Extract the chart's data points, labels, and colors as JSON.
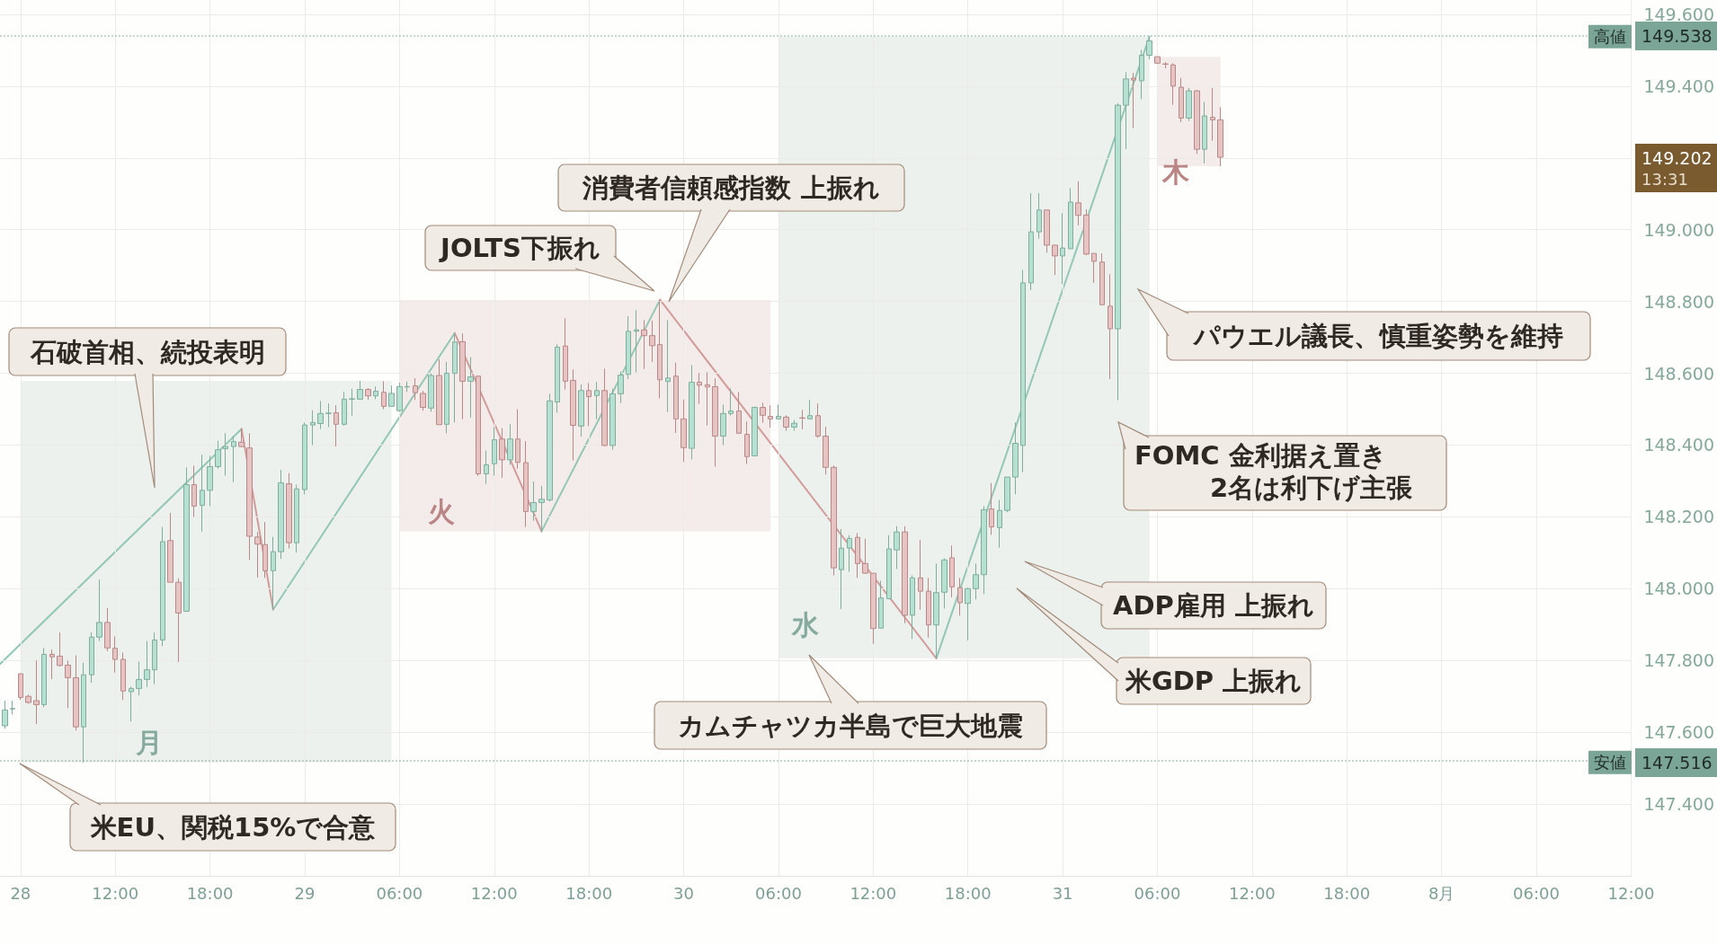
{
  "chart_data": {
    "type": "candlestick",
    "x": [
      "--07-28T05:00",
      "--07-28T05:30",
      "--07-28T06:00",
      "--07-28T06:30",
      "--07-28T07:00",
      "--07-28T07:30",
      "--07-28T08:00",
      "--07-28T08:30",
      "--07-28T09:00",
      "--07-28T09:30",
      "--07-28T10:00",
      "--07-28T10:30",
      "--07-28T11:00",
      "--07-28T11:30",
      "--07-28T12:00",
      "--07-28T12:30",
      "--07-28T13:00",
      "--07-28T13:30",
      "--07-28T14:00",
      "--07-28T14:30",
      "--07-28T15:00",
      "--07-28T15:30",
      "--07-28T16:00",
      "--07-28T16:30",
      "--07-28T17:00",
      "--07-28T17:30",
      "--07-28T18:00",
      "--07-28T18:30",
      "--07-28T19:00",
      "--07-28T19:30",
      "--07-28T20:00",
      "--07-28T20:30",
      "--07-28T21:00",
      "--07-28T21:30",
      "--07-28T22:00",
      "--07-28T22:30",
      "--07-28T23:00",
      "--07-28T23:30",
      "--07-29T00:00",
      "--07-29T00:30",
      "--07-29T01:00",
      "--07-29T01:30",
      "--07-29T02:00",
      "--07-29T02:30",
      "--07-29T03:00",
      "--07-29T03:30",
      "--07-29T04:00",
      "--07-29T04:30",
      "--07-29T05:00",
      "--07-29T05:30",
      "--07-29T06:00",
      "--07-29T06:30",
      "--07-29T07:00",
      "--07-29T07:30",
      "--07-29T08:00",
      "--07-29T08:30",
      "--07-29T09:00",
      "--07-29T09:30",
      "--07-29T10:00",
      "--07-29T10:30",
      "--07-29T11:00",
      "--07-29T11:30",
      "--07-29T12:00",
      "--07-29T12:30",
      "--07-29T13:00",
      "--07-29T13:30",
      "--07-29T14:00",
      "--07-29T14:30",
      "--07-29T15:00",
      "--07-29T15:30",
      "--07-29T16:00",
      "--07-29T16:30",
      "--07-29T17:00",
      "--07-29T17:30",
      "--07-29T18:00",
      "--07-29T18:30",
      "--07-29T19:00",
      "--07-29T19:30",
      "--07-29T20:00",
      "--07-29T20:30",
      "--07-29T21:00",
      "--07-29T21:30",
      "--07-29T22:00",
      "--07-29T22:30",
      "--07-29T23:00",
      "--07-29T23:30",
      "--07-30T00:00",
      "--07-30T00:30",
      "--07-30T01:00",
      "--07-30T01:30",
      "--07-30T02:00",
      "--07-30T02:30",
      "--07-30T03:00",
      "--07-30T03:30",
      "--07-30T04:00",
      "--07-30T04:30",
      "--07-30T05:00",
      "--07-30T05:30",
      "--07-30T06:00",
      "--07-30T06:30",
      "--07-30T07:00",
      "--07-30T07:30",
      "--07-30T08:00",
      "--07-30T08:30",
      "--07-30T09:00",
      "--07-30T09:30",
      "--07-30T10:00",
      "--07-30T10:30",
      "--07-30T11:00",
      "--07-30T11:30",
      "--07-30T12:00",
      "--07-30T12:30",
      "--07-30T13:00",
      "--07-30T13:30",
      "--07-30T14:00",
      "--07-30T14:30",
      "--07-30T15:00",
      "--07-30T15:30",
      "--07-30T16:00",
      "--07-30T16:30",
      "--07-30T17:00",
      "--07-30T17:30",
      "--07-30T18:00",
      "--07-30T18:30",
      "--07-30T19:00",
      "--07-30T19:30",
      "--07-30T20:00",
      "--07-30T20:30",
      "--07-30T21:00",
      "--07-30T21:30",
      "--07-30T22:00",
      "--07-30T22:30",
      "--07-30T23:00",
      "--07-30T23:30",
      "--07-31T00:00",
      "--07-31T00:30",
      "--07-31T01:00",
      "--07-31T01:30",
      "--07-31T02:00",
      "--07-31T02:30",
      "--07-31T03:00",
      "--07-31T03:30",
      "--07-31T04:00",
      "--07-31T04:30",
      "--07-31T05:00",
      "--07-31T05:30",
      "--07-31T06:00",
      "--07-31T06:30",
      "--07-31T07:00",
      "--07-31T07:30",
      "--07-31T08:00",
      "--07-31T08:30",
      "--07-31T09:00",
      "--07-31T09:30",
      "--07-31T10:00"
    ],
    "ohlc": [
      [
        147.618,
        147.688,
        147.61,
        147.662
      ],
      [
        147.665,
        147.688,
        147.65,
        147.666
      ],
      [
        147.763,
        147.763,
        147.69,
        147.697
      ],
      [
        147.7,
        147.705,
        147.68,
        147.683
      ],
      [
        147.688,
        147.8,
        147.623,
        147.677
      ],
      [
        147.677,
        147.835,
        147.67,
        147.817
      ],
      [
        147.817,
        147.83,
        147.748,
        147.81
      ],
      [
        147.812,
        147.878,
        147.783,
        147.786
      ],
      [
        147.787,
        147.8,
        147.667,
        147.752
      ],
      [
        147.752,
        147.814,
        147.605,
        147.615
      ],
      [
        147.615,
        147.794,
        147.516,
        147.76
      ],
      [
        147.76,
        147.878,
        147.738,
        147.865
      ],
      [
        147.865,
        148.025,
        147.854,
        147.906
      ],
      [
        147.906,
        147.946,
        147.826,
        147.835
      ],
      [
        147.834,
        147.867,
        147.766,
        147.803
      ],
      [
        147.803,
        147.822,
        147.69,
        147.715
      ],
      [
        147.713,
        147.727,
        147.63,
        147.722
      ],
      [
        147.722,
        147.797,
        147.703,
        147.747
      ],
      [
        147.747,
        147.854,
        147.726,
        147.774
      ],
      [
        147.774,
        147.878,
        147.734,
        147.857
      ],
      [
        147.857,
        148.172,
        147.84,
        148.131
      ],
      [
        148.134,
        148.211,
        148.018,
        148.018
      ],
      [
        148.018,
        148.029,
        147.796,
        147.932
      ],
      [
        147.937,
        148.338,
        147.937,
        148.29
      ],
      [
        148.29,
        148.343,
        148.2,
        148.23
      ],
      [
        148.232,
        148.373,
        148.159,
        148.274
      ],
      [
        148.274,
        148.37,
        148.23,
        148.34
      ],
      [
        148.34,
        148.412,
        148.334,
        148.387
      ],
      [
        148.39,
        148.433,
        148.315,
        148.396
      ],
      [
        148.396,
        148.426,
        148.297,
        148.41
      ],
      [
        148.408,
        148.445,
        148.394,
        148.396
      ],
      [
        148.392,
        148.433,
        148.08,
        148.146
      ],
      [
        148.144,
        148.158,
        148.031,
        148.124
      ],
      [
        148.123,
        148.186,
        148.03,
        148.05
      ],
      [
        148.05,
        148.144,
        147.942,
        148.103
      ],
      [
        148.103,
        148.331,
        148.083,
        148.295
      ],
      [
        148.292,
        148.322,
        148.112,
        148.128
      ],
      [
        148.128,
        148.29,
        148.1,
        148.278
      ],
      [
        148.276,
        148.463,
        148.263,
        148.456
      ],
      [
        148.456,
        148.497,
        148.4,
        148.463
      ],
      [
        148.46,
        148.523,
        148.445,
        148.488
      ],
      [
        148.488,
        148.516,
        148.45,
        148.489
      ],
      [
        148.49,
        148.511,
        148.396,
        148.458
      ],
      [
        148.458,
        148.548,
        148.454,
        148.528
      ],
      [
        148.528,
        148.557,
        148.482,
        148.529
      ],
      [
        148.528,
        148.579,
        148.526,
        148.555
      ],
      [
        148.555,
        148.559,
        148.526,
        148.537
      ],
      [
        148.537,
        148.563,
        148.528,
        148.55
      ],
      [
        148.547,
        148.578,
        148.5,
        148.508
      ],
      [
        148.508,
        148.566,
        148.508,
        148.544
      ],
      [
        148.496,
        148.574,
        148.493,
        148.563
      ],
      [
        148.562,
        148.577,
        148.548,
        148.563
      ],
      [
        148.565,
        148.586,
        148.526,
        148.546
      ],
      [
        148.544,
        148.551,
        148.496,
        148.505
      ],
      [
        148.503,
        148.6,
        148.493,
        148.594
      ],
      [
        148.594,
        148.639,
        148.457,
        148.457
      ],
      [
        148.458,
        148.632,
        148.433,
        148.6
      ],
      [
        148.6,
        148.712,
        148.463,
        148.687
      ],
      [
        148.688,
        148.711,
        148.472,
        148.578
      ],
      [
        148.578,
        148.645,
        148.477,
        148.59
      ],
      [
        148.592,
        148.594,
        148.314,
        148.32
      ],
      [
        148.32,
        148.385,
        148.292,
        148.345
      ],
      [
        148.348,
        148.451,
        148.315,
        148.415
      ],
      [
        148.417,
        148.447,
        148.309,
        148.359
      ],
      [
        148.359,
        148.458,
        148.345,
        148.417
      ],
      [
        148.417,
        148.5,
        148.334,
        148.352
      ],
      [
        148.351,
        148.411,
        148.172,
        148.215
      ],
      [
        148.215,
        148.299,
        148.189,
        148.24
      ],
      [
        148.24,
        148.286,
        148.16,
        148.249
      ],
      [
        148.247,
        148.543,
        148.243,
        148.523
      ],
      [
        148.52,
        148.681,
        148.49,
        148.673
      ],
      [
        148.676,
        148.753,
        148.555,
        148.578
      ],
      [
        148.58,
        148.611,
        148.357,
        148.455
      ],
      [
        148.453,
        148.569,
        148.424,
        148.552
      ],
      [
        148.552,
        148.573,
        148.453,
        148.535
      ],
      [
        148.538,
        148.576,
        148.472,
        148.552
      ],
      [
        148.552,
        148.613,
        148.397,
        148.399
      ],
      [
        148.399,
        148.557,
        148.387,
        148.543
      ],
      [
        148.543,
        148.605,
        148.517,
        148.595
      ],
      [
        148.597,
        148.759,
        148.584,
        148.717
      ],
      [
        148.717,
        148.776,
        148.603,
        148.721
      ],
      [
        148.721,
        148.748,
        148.612,
        148.705
      ],
      [
        148.705,
        148.747,
        148.632,
        148.677
      ],
      [
        148.68,
        148.804,
        148.53,
        148.582
      ],
      [
        148.577,
        148.748,
        148.492,
        148.587
      ],
      [
        148.592,
        148.63,
        148.434,
        148.473
      ],
      [
        148.473,
        148.527,
        148.353,
        148.393
      ],
      [
        148.391,
        148.623,
        148.36,
        148.575
      ],
      [
        148.575,
        148.601,
        148.515,
        148.567
      ],
      [
        148.568,
        148.603,
        148.455,
        148.562
      ],
      [
        148.563,
        148.586,
        148.34,
        148.425
      ],
      [
        148.425,
        148.513,
        148.4,
        148.488
      ],
      [
        148.488,
        148.558,
        148.482,
        148.495
      ],
      [
        148.495,
        148.548,
        148.432,
        148.433
      ],
      [
        148.43,
        148.466,
        148.347,
        148.368
      ],
      [
        148.37,
        148.507,
        148.37,
        148.505
      ],
      [
        148.505,
        148.518,
        148.462,
        148.483
      ],
      [
        148.48,
        148.511,
        148.449,
        148.473
      ],
      [
        148.473,
        148.513,
        148.473,
        148.48
      ],
      [
        148.478,
        148.483,
        148.44,
        148.45
      ],
      [
        148.45,
        148.47,
        148.44,
        148.461
      ],
      [
        148.476,
        148.498,
        148.444,
        148.475
      ],
      [
        148.473,
        148.526,
        148.473,
        148.482
      ],
      [
        148.482,
        148.516,
        148.42,
        148.425
      ],
      [
        148.425,
        148.451,
        148.318,
        148.338
      ],
      [
        148.338,
        148.343,
        148.037,
        148.058
      ],
      [
        148.053,
        148.166,
        147.943,
        148.113
      ],
      [
        148.113,
        148.149,
        148.047,
        148.14
      ],
      [
        148.143,
        148.155,
        148.03,
        148.07
      ],
      [
        148.07,
        148.139,
        148.043,
        148.043
      ],
      [
        148.043,
        148.043,
        147.846,
        147.889
      ],
      [
        147.89,
        148.022,
        147.89,
        147.974
      ],
      [
        147.972,
        148.149,
        147.972,
        148.111
      ],
      [
        148.108,
        148.174,
        148.055,
        148.158
      ],
      [
        148.158,
        148.174,
        147.904,
        147.926
      ],
      [
        147.926,
        148.037,
        147.86,
        148.03
      ],
      [
        148.03,
        148.136,
        147.941,
        147.993
      ],
      [
        147.993,
        148.03,
        147.864,
        147.899
      ],
      [
        147.899,
        148.07,
        147.806,
        147.989
      ],
      [
        147.99,
        148.085,
        147.945,
        148.08
      ],
      [
        148.086,
        148.12,
        147.976,
        148.005
      ],
      [
        148.003,
        148.03,
        147.925,
        147.961
      ],
      [
        147.959,
        148.003,
        147.856,
        148
      ],
      [
        148,
        148.07,
        147.97,
        148.039
      ],
      [
        148.039,
        148.23,
        147.985,
        148.22
      ],
      [
        148.222,
        148.294,
        148.15,
        148.172
      ],
      [
        148.17,
        148.247,
        148.114,
        148.218
      ],
      [
        148.218,
        148.311,
        148.213,
        148.311
      ],
      [
        148.311,
        148.463,
        148.263,
        148.405
      ],
      [
        148.399,
        148.888,
        148.325,
        148.852
      ],
      [
        148.852,
        149.102,
        148.832,
        148.994
      ],
      [
        148.994,
        149.102,
        148.975,
        149.055
      ],
      [
        149.055,
        149.055,
        148.936,
        148.957
      ],
      [
        148.957,
        148.957,
        148.874,
        148.927
      ],
      [
        148.927,
        149.046,
        148.849,
        148.949
      ],
      [
        148.947,
        149.116,
        148.947,
        149.077
      ],
      [
        149.075,
        149.135,
        149.012,
        149.04
      ],
      [
        149.041,
        149.057,
        148.929,
        148.932
      ],
      [
        148.934,
        148.934,
        148.852,
        148.912
      ],
      [
        148.91,
        148.934,
        148.791,
        148.791
      ],
      [
        148.787,
        148.876,
        148.584,
        148.724
      ],
      [
        148.724,
        149.352,
        148.525,
        149.347
      ],
      [
        149.347,
        149.439,
        149.225,
        149.42
      ],
      [
        149.422,
        149.437,
        149.283,
        149.417
      ],
      [
        149.415,
        149.501,
        149.364,
        149.486
      ],
      [
        149.486,
        149.538,
        149.475,
        149.526
      ],
      [
        149.482,
        149.482,
        149.462,
        149.464
      ],
      [
        149.462,
        149.467,
        149.45,
        149.461
      ],
      [
        149.459,
        149.464,
        149.348,
        149.4
      ],
      [
        149.397,
        149.423,
        149.3,
        149.311
      ],
      [
        149.311,
        149.395,
        149.303,
        149.387
      ],
      [
        149.387,
        149.389,
        149.211,
        149.224
      ],
      [
        149.224,
        149.356,
        149.185,
        149.317
      ],
      [
        149.313,
        149.395,
        149.248,
        149.306
      ],
      [
        149.306,
        149.341,
        149.177,
        149.202
      ]
    ],
    "series": [
      {
        "type": "line",
        "color": "#93c7b5",
        "x": [
          "--07-28T04:42",
          "--07-28T20:00",
          "--07-28T21:00",
          "--07-28T22:00",
          "--07-29T09:30",
          "--07-29T12:00",
          "--07-29T15:00",
          "--07-29T22:30",
          "--07-30T07:00",
          "--07-30T16:00",
          "--07-31T05:30"
        ],
        "values": [
          147.79,
          148.445,
          null,
          147.942,
          148.712,
          null,
          148.16,
          148.805,
          null,
          147.806,
          149.538
        ]
      },
      {
        "type": "line",
        "color": "#d39c9c",
        "x": [
          "--07-28T20:00",
          "--07-28T22:00",
          "--07-29T04:00",
          "--07-29T09:30",
          "--07-29T15:00",
          "--07-29T18:00",
          "--07-29T22:30",
          "--07-30T16:00"
        ],
        "values": [
          148.445,
          147.942,
          null,
          148.712,
          148.16,
          null,
          148.805,
          147.806
        ]
      }
    ],
    "xlim": [
      "--07-28T04:42",
      "--08-01T12:00"
    ],
    "xticks": [
      {
        "value": "--07-28T06:00",
        "label": "28"
      },
      {
        "value": "--07-28T12:00",
        "label": "12:00"
      },
      {
        "value": "--07-28T18:00",
        "label": "18:00"
      },
      {
        "value": "--07-29T00:00",
        "label": "29"
      },
      {
        "value": "--07-29T06:00",
        "label": "06:00"
      },
      {
        "value": "--07-29T12:00",
        "label": "12:00"
      },
      {
        "value": "--07-29T18:00",
        "label": "18:00"
      },
      {
        "value": "--07-30T00:00",
        "label": "30"
      },
      {
        "value": "--07-30T06:00",
        "label": "06:00"
      },
      {
        "value": "--07-30T12:00",
        "label": "12:00"
      },
      {
        "value": "--07-30T18:00",
        "label": "18:00"
      },
      {
        "value": "--07-31T00:00",
        "label": "31"
      },
      {
        "value": "--07-31T06:00",
        "label": "06:00"
      },
      {
        "value": "--07-31T12:00",
        "label": "12:00"
      },
      {
        "value": "--07-31T18:00",
        "label": "18:00"
      },
      {
        "value": "--08-01T00:00",
        "label": "8月"
      },
      {
        "value": "--08-01T06:00",
        "label": "06:00"
      },
      {
        "value": "--08-01T12:00",
        "label": "12:00"
      }
    ],
    "ylim": [
      147.2,
      149.64
    ],
    "yticks": [
      {
        "value": 147.4,
        "label": "147.400"
      },
      {
        "value": 147.6,
        "label": "147.600"
      },
      {
        "value": 147.8,
        "label": "147.800"
      },
      {
        "value": 148,
        "label": "148.000"
      },
      {
        "value": 148.2,
        "label": "148.200"
      },
      {
        "value": 148.4,
        "label": "148.400"
      },
      {
        "value": 148.6,
        "label": "148.600"
      },
      {
        "value": 148.8,
        "label": "148.800"
      },
      {
        "value": 149,
        "label": "149.000"
      },
      {
        "value": 149.2,
        "label": null
      },
      {
        "value": 149.4,
        "label": "149.400"
      },
      {
        "value": 149.6,
        "label": "149.600"
      }
    ],
    "grid": true,
    "bands": [
      {
        "axis": "x",
        "from": "--07-28T06:00",
        "to": "--07-29T05:30",
        "label": "月",
        "color": "#86ab9e"
      },
      {
        "axis": "x",
        "from": "--07-29T06:00",
        "to": "--07-30T05:30",
        "label": "火",
        "color": "#b98585"
      },
      {
        "axis": "x",
        "from": "--07-30T06:00",
        "to": "--07-31T05:30",
        "label": "水",
        "color": "#86ab9e"
      },
      {
        "axis": "x",
        "from": "--07-31T06:00",
        "to": "--07-31T10:00",
        "label": "木",
        "color": "#b98585"
      }
    ],
    "ref_lines": [
      {
        "axis": "y",
        "value": 149.538,
        "label": "高値",
        "color": "#7ba596",
        "line_style": "dotted"
      },
      {
        "axis": "y",
        "value": 147.516,
        "label": "安値",
        "color": "#7ba596",
        "line_style": "dotted"
      }
    ],
    "annotations": [
      "石破首相、続投表明",
      "米EU、関税15%で合意",
      "JOLTS下振れ",
      "消費者信頼感指数 上振れ",
      "カムチャツカ半島で巨大地震",
      "FOMC 金利据え置き\n2名は利下げ主張",
      "パウエル議長、慎重姿勢を維持",
      "ADP雇用 上振れ",
      "米GDP 上振れ",
      "149.538",
      "147.516",
      "149.202\n13:31"
    ]
  }
}
